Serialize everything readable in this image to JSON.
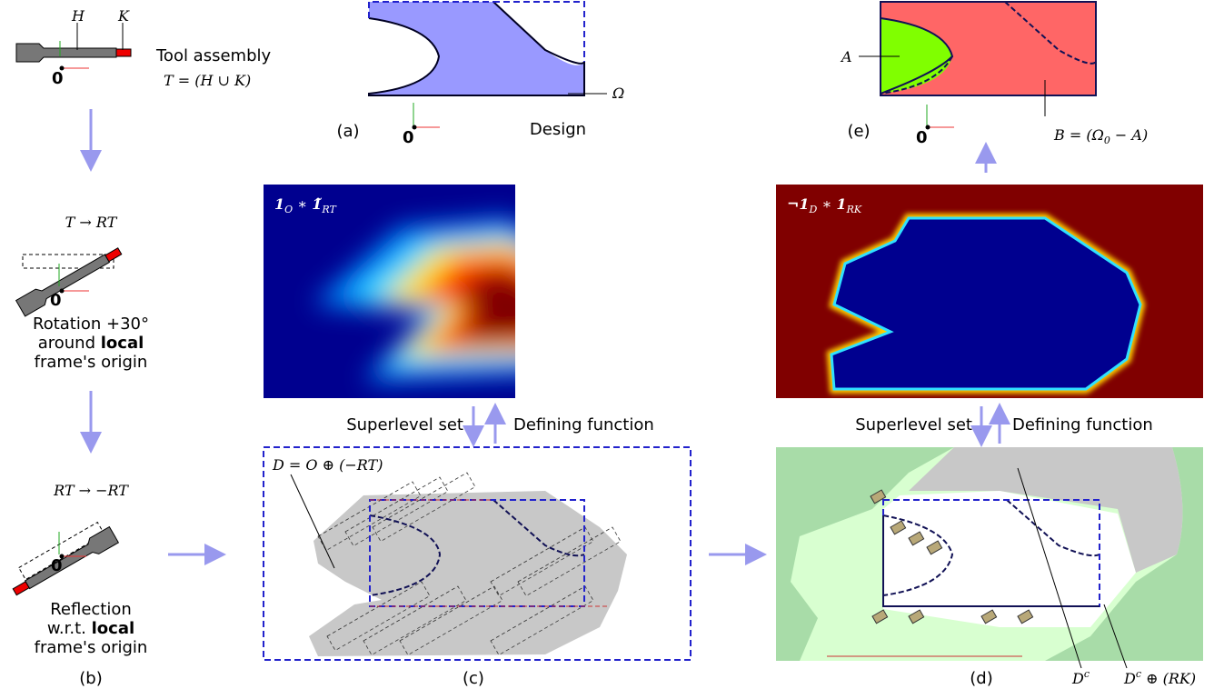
{
  "tool_panel": {
    "h_label": "H",
    "k_label": "K",
    "title": "Tool assembly",
    "formula": "T = (H ∪ K)",
    "origin": "0"
  },
  "rotation_panel": {
    "formula": "T → RT",
    "origin": "0",
    "line1": "Rotation +30°",
    "line2_a": "around",
    "line2_b": "local",
    "line3": "frame's origin"
  },
  "reflection_panel": {
    "formula": "RT → −RT",
    "origin": "0",
    "line1": "Reflection",
    "line2_a": "w.r.t.",
    "line2_b": "local",
    "line3": "frame's origin",
    "caption": "(b)"
  },
  "panel_a": {
    "caption": "(a)",
    "design": "Design",
    "omega": "Ω",
    "origin": "0"
  },
  "panel_c_heatmap": {
    "label": [
      "1",
      "O",
      " ∗ ",
      "1̃",
      "RT"
    ]
  },
  "panel_c": {
    "caption": "(c)",
    "formula": "D = O ⊕ (−RT)",
    "superlevel": "Superlevel set",
    "defining": "Defining function"
  },
  "panel_e_heatmap": {
    "label": [
      "¬1",
      "D",
      " ∗ ",
      "1",
      "RK"
    ]
  },
  "panel_e": {
    "caption": "(e)",
    "a_label": "A",
    "b_formula": [
      "B = (Ω",
      "0",
      " − A)"
    ],
    "origin": "0"
  },
  "panel_d": {
    "caption": "(d)",
    "superlevel": "Superlevel set",
    "defining": "Defining function",
    "dc": [
      "D",
      "c"
    ],
    "dc_rk": [
      "D",
      "c",
      " ⊕ (RK)"
    ]
  }
}
